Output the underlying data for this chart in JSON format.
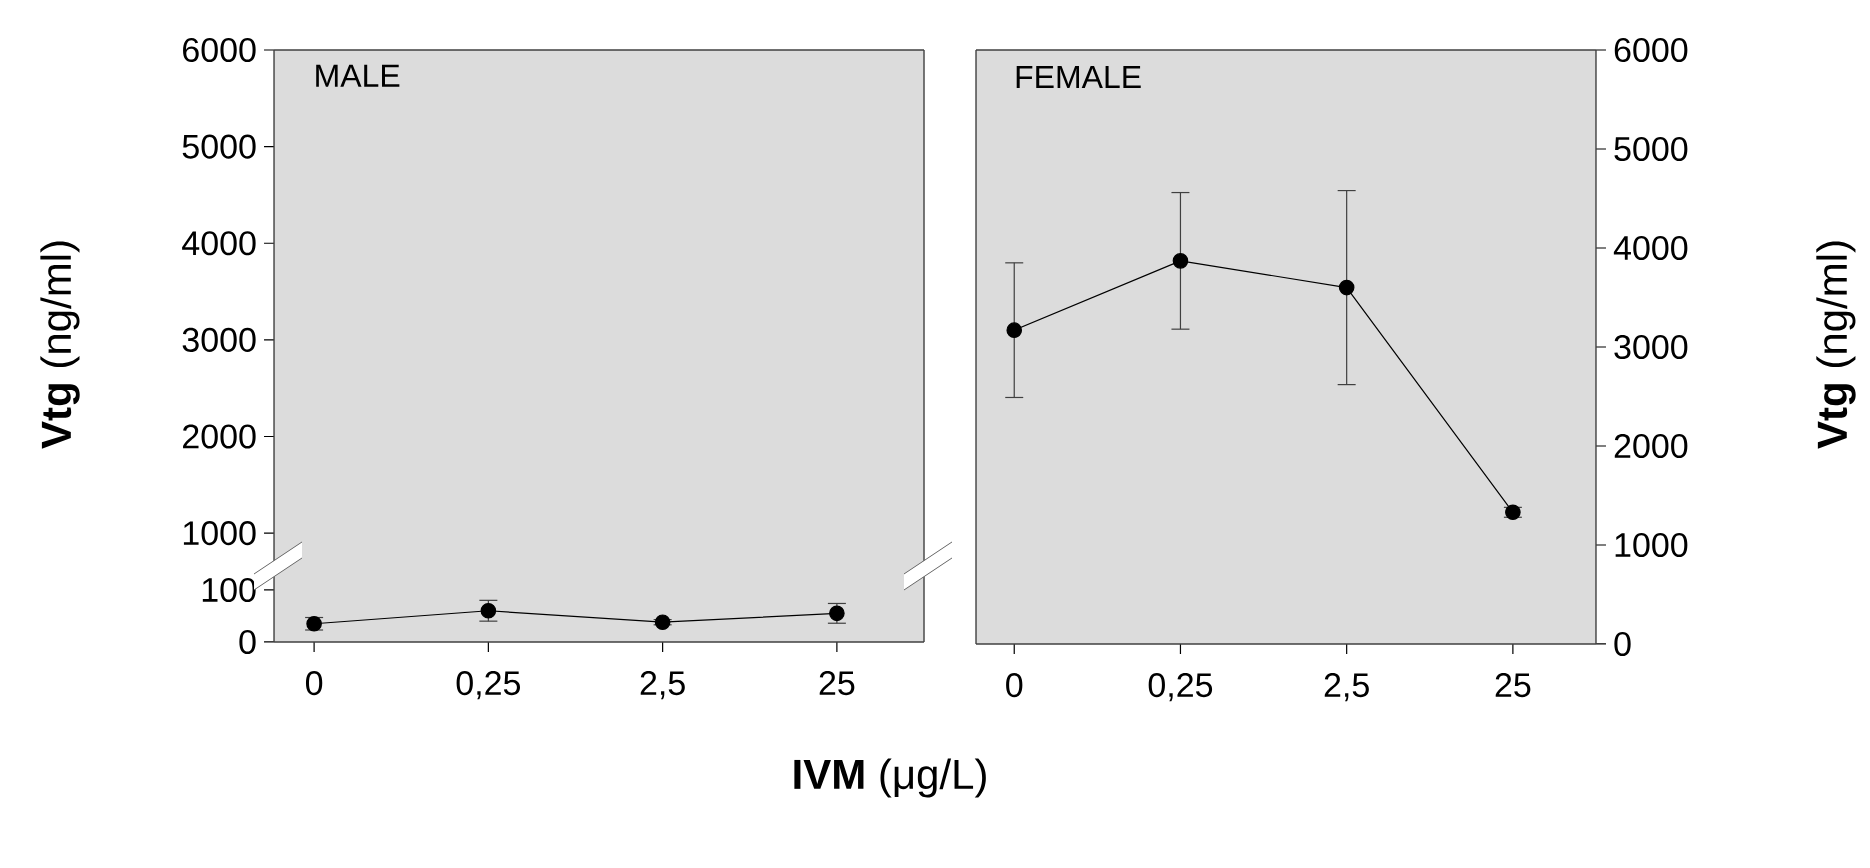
{
  "chart_data": [
    {
      "type": "line",
      "title": "MALE",
      "ylabel": "**Vtg** (ng/ml)",
      "categories": [
        "0",
        "0,25",
        "2,5",
        "25"
      ],
      "values": [
        null,
        null,
        null,
        null
      ],
      "ylim": [
        660,
        6000
      ],
      "yticks": [
        1000,
        2000,
        3000,
        4000,
        5000,
        6000
      ],
      "tick_labels": "y",
      "marker": "circle",
      "color": "#000000"
    },
    {
      "type": "line",
      "categories": [
        "0",
        "0,25",
        "2,5",
        "25"
      ],
      "values": [
        35,
        60,
        38,
        55
      ],
      "errors": [
        12,
        20,
        5,
        19
      ],
      "ylim": [
        0,
        146
      ],
      "yticks": [
        0,
        100
      ],
      "marker": "circle",
      "line_style": "solid",
      "color": "#000000"
    },
    {
      "type": "line",
      "title": "FEMALE",
      "xlabel": "**IVM** (μg/L)",
      "ylabel": "**Vtg** (ng/ml)",
      "categories": [
        "0",
        "0,25",
        "2,5",
        "25"
      ],
      "values": [
        3170,
        3870,
        3600,
        1330
      ],
      "errors": [
        680,
        690,
        980,
        50
      ],
      "ylim": [
        0,
        6000
      ],
      "yticks": [
        0,
        1000,
        2000,
        3000,
        4000,
        5000,
        6000
      ],
      "marker": "circle",
      "line_style": "solid",
      "color": "#000000"
    }
  ]
}
